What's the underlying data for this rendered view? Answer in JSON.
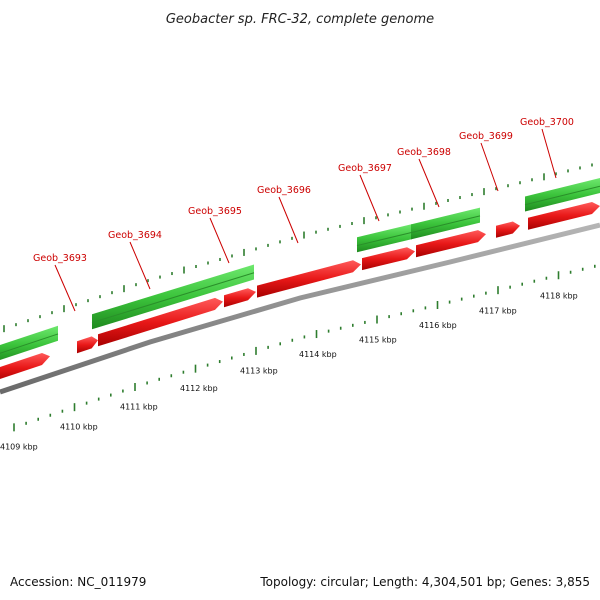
{
  "title": "Geobacter sp. FRC-32, complete genome",
  "footer": {
    "accession": "Accession: NC_011979",
    "summary": "Topology: circular; Length: 4,304,501 bp; Genes: 3,855"
  },
  "colors": {
    "forward_gene": "#3cc43c",
    "forward_gene_dark": "#2a8f2a",
    "reverse_gene": "#e81818",
    "backbone": "#8a8a8a",
    "tick": "#2e7d2e",
    "label": "#cc0000"
  },
  "scale": {
    "unit": "kbp",
    "labels": [
      "4109 kbp",
      "4110 kbp",
      "4111 kbp",
      "4112 kbp",
      "4113 kbp",
      "4114 kbp",
      "4115 kbp",
      "4116 kbp",
      "4117 kbp",
      "4118 kbp"
    ]
  },
  "gene_labels": [
    "Geob_3693",
    "Geob_3694",
    "Geob_3695",
    "Geob_3696",
    "Geob_3697",
    "Geob_3698",
    "Geob_3699",
    "Geob_3700"
  ]
}
